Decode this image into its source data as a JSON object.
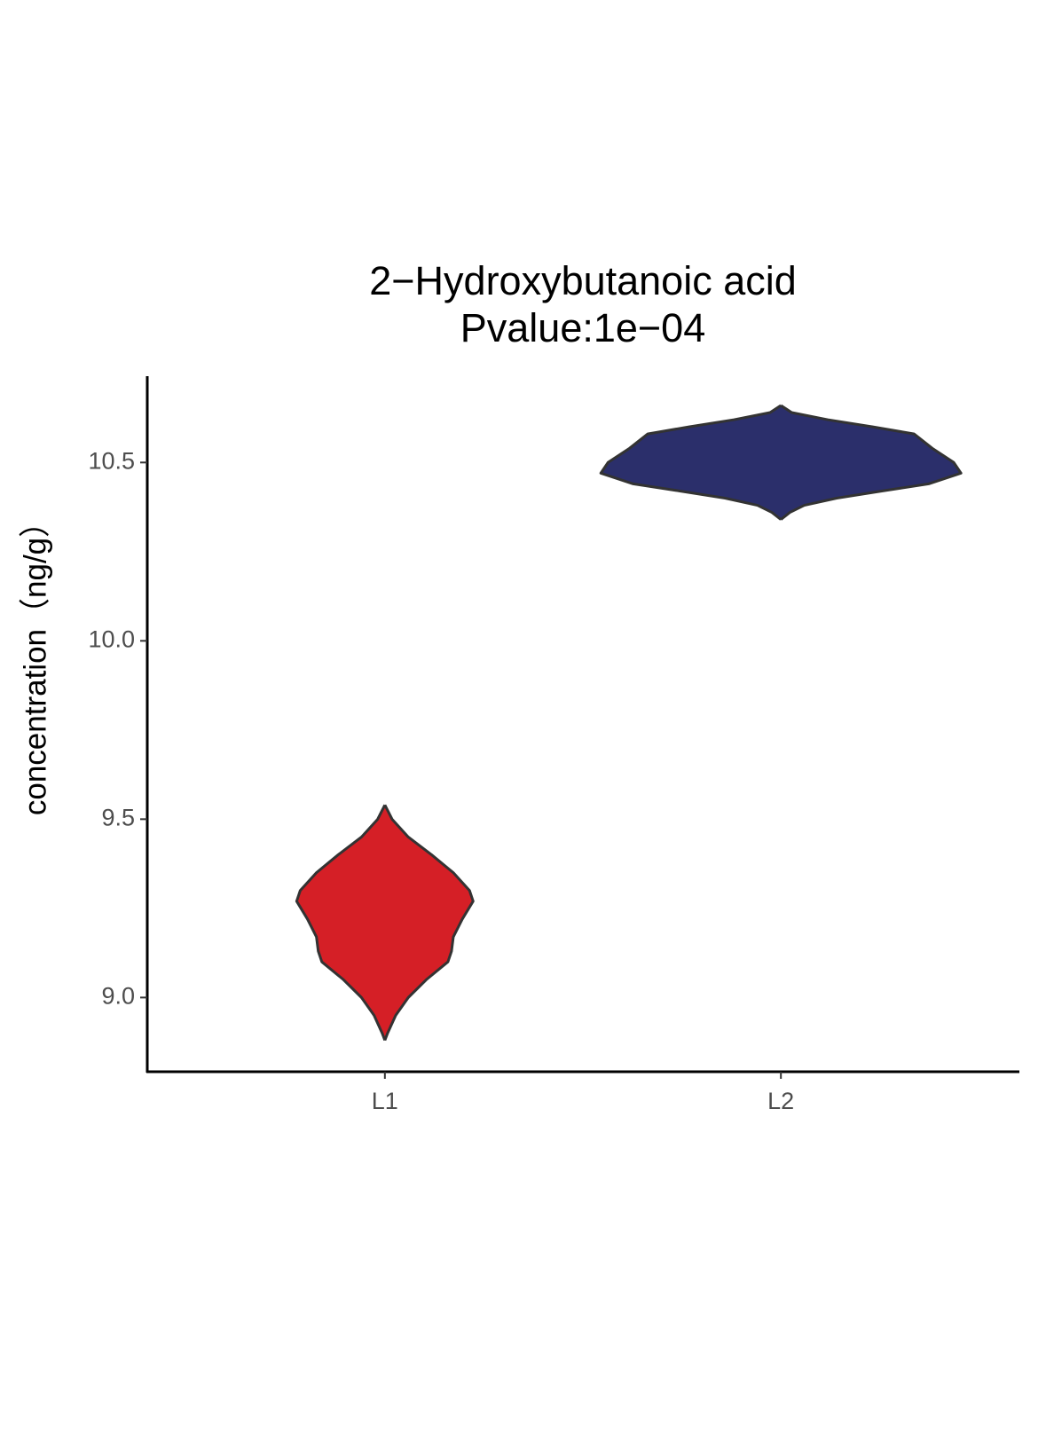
{
  "chart_data": {
    "type": "violin",
    "title": "2−Hydroxybutanoic acid",
    "subtitle": "Pvalue:1e−04",
    "y_label": "concentration（ng/g）",
    "categories": [
      "L1",
      "L2"
    ],
    "series": [
      {
        "name": "L1",
        "color": "#d51f26",
        "y": [
          8.88,
          8.9,
          8.95,
          9.0,
          9.05,
          9.1,
          9.13,
          9.17,
          9.22,
          9.27,
          9.3,
          9.35,
          9.4,
          9.45,
          9.5,
          9.54
        ],
        "width": [
          0,
          0.015,
          0.06,
          0.13,
          0.23,
          0.35,
          0.37,
          0.38,
          0.43,
          0.49,
          0.47,
          0.38,
          0.26,
          0.13,
          0.04,
          0
        ]
      },
      {
        "name": "L2",
        "color": "#2b2f6b",
        "y": [
          10.34,
          10.36,
          10.38,
          10.4,
          10.42,
          10.44,
          10.47,
          10.5,
          10.52,
          10.54,
          10.56,
          10.58,
          10.6,
          10.62,
          10.64,
          10.66
        ],
        "width": [
          0,
          0.05,
          0.13,
          0.31,
          0.56,
          0.82,
          1,
          0.96,
          0.9,
          0.84,
          0.79,
          0.74,
          0.51,
          0.26,
          0.06,
          0
        ]
      }
    ],
    "ylim": [
      8.792,
      10.742
    ],
    "yticks": [
      {
        "value": 9,
        "label": "9.0"
      },
      9.5,
      {
        "value": 10,
        "label": "10.0"
      },
      10.5
    ]
  }
}
